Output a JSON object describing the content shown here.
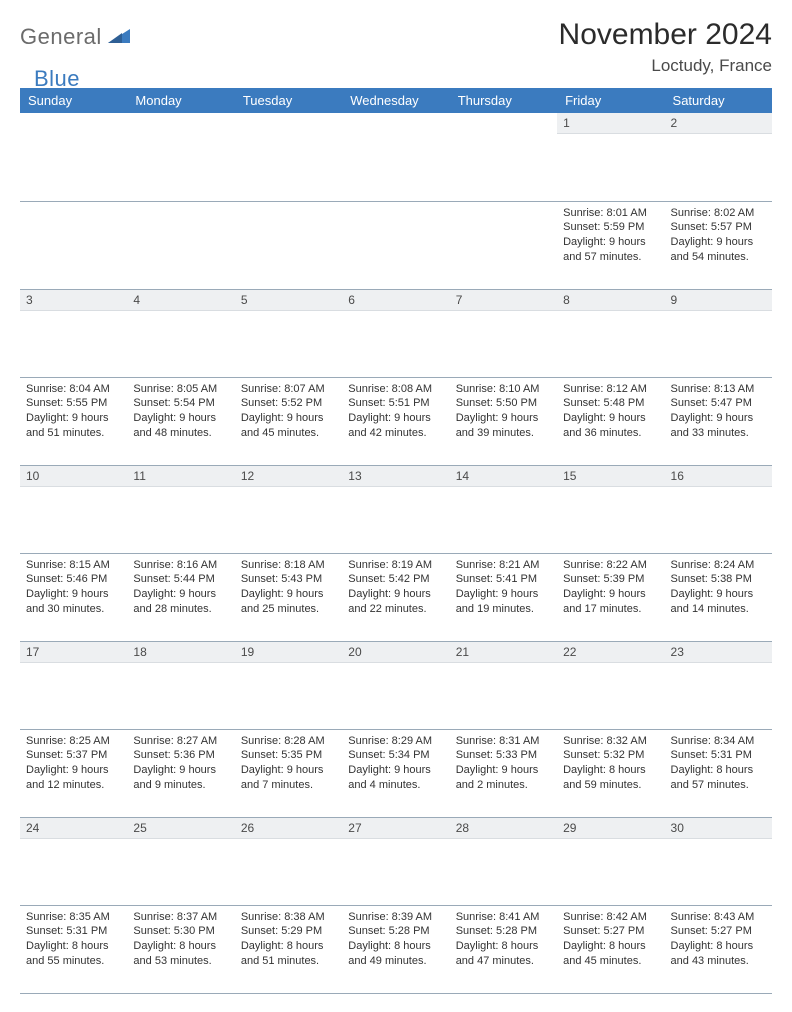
{
  "branding": {
    "logo_part1": "General",
    "logo_part2": "Blue",
    "logo_color_gray": "#6b6b6b",
    "logo_color_blue": "#3b7bbf"
  },
  "header": {
    "title": "November 2024",
    "location": "Loctudy, France"
  },
  "theme": {
    "header_bg": "#3b7bbf",
    "header_fg": "#ffffff",
    "grid_border": "#9aaab8",
    "daynum_bg": "#eef0f2",
    "text_color": "#333333"
  },
  "weekdays": [
    "Sunday",
    "Monday",
    "Tuesday",
    "Wednesday",
    "Thursday",
    "Friday",
    "Saturday"
  ],
  "weeks": [
    [
      null,
      null,
      null,
      null,
      null,
      {
        "n": "1",
        "sunrise": "8:01 AM",
        "sunset": "5:59 PM",
        "dl_h": "9",
        "dl_m": "57"
      },
      {
        "n": "2",
        "sunrise": "8:02 AM",
        "sunset": "5:57 PM",
        "dl_h": "9",
        "dl_m": "54"
      }
    ],
    [
      {
        "n": "3",
        "sunrise": "8:04 AM",
        "sunset": "5:55 PM",
        "dl_h": "9",
        "dl_m": "51"
      },
      {
        "n": "4",
        "sunrise": "8:05 AM",
        "sunset": "5:54 PM",
        "dl_h": "9",
        "dl_m": "48"
      },
      {
        "n": "5",
        "sunrise": "8:07 AM",
        "sunset": "5:52 PM",
        "dl_h": "9",
        "dl_m": "45"
      },
      {
        "n": "6",
        "sunrise": "8:08 AM",
        "sunset": "5:51 PM",
        "dl_h": "9",
        "dl_m": "42"
      },
      {
        "n": "7",
        "sunrise": "8:10 AM",
        "sunset": "5:50 PM",
        "dl_h": "9",
        "dl_m": "39"
      },
      {
        "n": "8",
        "sunrise": "8:12 AM",
        "sunset": "5:48 PM",
        "dl_h": "9",
        "dl_m": "36"
      },
      {
        "n": "9",
        "sunrise": "8:13 AM",
        "sunset": "5:47 PM",
        "dl_h": "9",
        "dl_m": "33"
      }
    ],
    [
      {
        "n": "10",
        "sunrise": "8:15 AM",
        "sunset": "5:46 PM",
        "dl_h": "9",
        "dl_m": "30"
      },
      {
        "n": "11",
        "sunrise": "8:16 AM",
        "sunset": "5:44 PM",
        "dl_h": "9",
        "dl_m": "28"
      },
      {
        "n": "12",
        "sunrise": "8:18 AM",
        "sunset": "5:43 PM",
        "dl_h": "9",
        "dl_m": "25"
      },
      {
        "n": "13",
        "sunrise": "8:19 AM",
        "sunset": "5:42 PM",
        "dl_h": "9",
        "dl_m": "22"
      },
      {
        "n": "14",
        "sunrise": "8:21 AM",
        "sunset": "5:41 PM",
        "dl_h": "9",
        "dl_m": "19"
      },
      {
        "n": "15",
        "sunrise": "8:22 AM",
        "sunset": "5:39 PM",
        "dl_h": "9",
        "dl_m": "17"
      },
      {
        "n": "16",
        "sunrise": "8:24 AM",
        "sunset": "5:38 PM",
        "dl_h": "9",
        "dl_m": "14"
      }
    ],
    [
      {
        "n": "17",
        "sunrise": "8:25 AM",
        "sunset": "5:37 PM",
        "dl_h": "9",
        "dl_m": "12"
      },
      {
        "n": "18",
        "sunrise": "8:27 AM",
        "sunset": "5:36 PM",
        "dl_h": "9",
        "dl_m": "9"
      },
      {
        "n": "19",
        "sunrise": "8:28 AM",
        "sunset": "5:35 PM",
        "dl_h": "9",
        "dl_m": "7"
      },
      {
        "n": "20",
        "sunrise": "8:29 AM",
        "sunset": "5:34 PM",
        "dl_h": "9",
        "dl_m": "4"
      },
      {
        "n": "21",
        "sunrise": "8:31 AM",
        "sunset": "5:33 PM",
        "dl_h": "9",
        "dl_m": "2"
      },
      {
        "n": "22",
        "sunrise": "8:32 AM",
        "sunset": "5:32 PM",
        "dl_h": "8",
        "dl_m": "59"
      },
      {
        "n": "23",
        "sunrise": "8:34 AM",
        "sunset": "5:31 PM",
        "dl_h": "8",
        "dl_m": "57"
      }
    ],
    [
      {
        "n": "24",
        "sunrise": "8:35 AM",
        "sunset": "5:31 PM",
        "dl_h": "8",
        "dl_m": "55"
      },
      {
        "n": "25",
        "sunrise": "8:37 AM",
        "sunset": "5:30 PM",
        "dl_h": "8",
        "dl_m": "53"
      },
      {
        "n": "26",
        "sunrise": "8:38 AM",
        "sunset": "5:29 PM",
        "dl_h": "8",
        "dl_m": "51"
      },
      {
        "n": "27",
        "sunrise": "8:39 AM",
        "sunset": "5:28 PM",
        "dl_h": "8",
        "dl_m": "49"
      },
      {
        "n": "28",
        "sunrise": "8:41 AM",
        "sunset": "5:28 PM",
        "dl_h": "8",
        "dl_m": "47"
      },
      {
        "n": "29",
        "sunrise": "8:42 AM",
        "sunset": "5:27 PM",
        "dl_h": "8",
        "dl_m": "45"
      },
      {
        "n": "30",
        "sunrise": "8:43 AM",
        "sunset": "5:27 PM",
        "dl_h": "8",
        "dl_m": "43"
      }
    ]
  ],
  "labels": {
    "sunrise": "Sunrise:",
    "sunset": "Sunset:",
    "daylight_prefix": "Daylight:",
    "hours_word": "hours",
    "and_word": "and",
    "minutes_word": "minutes."
  }
}
